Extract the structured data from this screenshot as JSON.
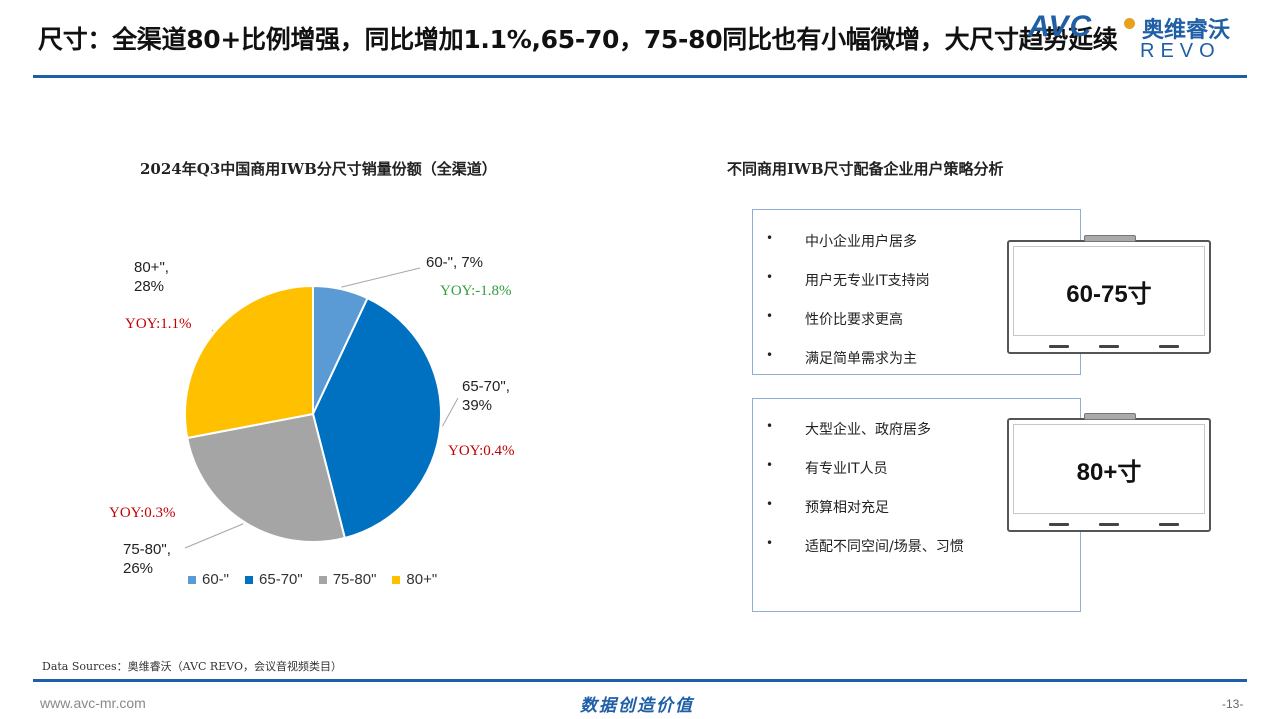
{
  "page_title": "尺寸：全渠道80+比例增强，同比增加1.1%,65-70，75-80同比也有小幅微增，大尺寸趋势延续",
  "logo": {
    "avc": "AVC",
    "cn": "奥维睿沃",
    "revo": "REVO"
  },
  "chart_data": {
    "type": "pie",
    "title": "2024年Q3中国商用IWB分尺寸销量份额（全渠道）",
    "categories": [
      "60-\"",
      "65-70\"",
      "75-80\"",
      "80+\""
    ],
    "values": [
      7,
      39,
      26,
      28
    ],
    "unit": "%",
    "colors": [
      "#5b9bd5",
      "#0070c0",
      "#a5a5a5",
      "#ffc000"
    ],
    "start_angle_deg": 0,
    "legend_position": "bottom",
    "slices": [
      {
        "label": "60-\", 7%",
        "label_line1": "60-\", 7%",
        "label_line2": "",
        "yoy": "YOY:-1.8%",
        "yoy_color": "#2e9e3e"
      },
      {
        "label": "65-70\", 39%",
        "label_line1": "65-70\",",
        "label_line2": "39%",
        "yoy": "YOY:0.4%",
        "yoy_color": "#c00000"
      },
      {
        "label": "75-80\", 26%",
        "label_line1": "75-80\",",
        "label_line2": "26%",
        "yoy": "YOY:0.3%",
        "yoy_color": "#c00000"
      },
      {
        "label": "80+\", 28%",
        "label_line1": "80+\",",
        "label_line2": "28%",
        "yoy": "YOY:1.1%",
        "yoy_color": "#c00000"
      }
    ]
  },
  "panel": {
    "title": "不同商用IWB尺寸配备企业用户策略分析",
    "bullet_char": "•",
    "groups": [
      {
        "size_label": "60-75寸",
        "items": [
          "中小企业用户居多",
          "用户无专业IT支持岗",
          "性价比要求更高",
          "满足简单需求为主"
        ]
      },
      {
        "size_label": "80+寸",
        "items": [
          "大型企业、政府居多",
          "有专业IT人员",
          "预算相对充足",
          "适配不同空间/场景、习惯"
        ]
      }
    ]
  },
  "footer": {
    "source": "Data Sources：奥维睿沃（AVC REVO，会议音视频类目）",
    "url": "www.avc-mr.com",
    "slogan": "数据创造价值",
    "page_number": "-13-"
  }
}
